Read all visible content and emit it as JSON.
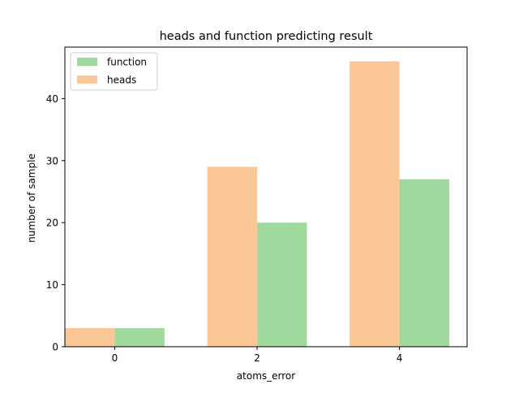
{
  "chart_data": {
    "type": "bar",
    "title": "heads and function predicting result",
    "xlabel": "atoms_error",
    "ylabel": "number of sample",
    "categories": [
      "0",
      "2",
      "4"
    ],
    "x": [
      0,
      2,
      4
    ],
    "xlim": [
      -0.7,
      4.95
    ],
    "ylim": [
      0,
      48.3
    ],
    "yticks": [
      0,
      10,
      20,
      30,
      40
    ],
    "series": [
      {
        "name": "function",
        "values": [
          3,
          20,
          27
        ],
        "color": "#a0d99d"
      },
      {
        "name": "heads",
        "values": [
          3,
          29,
          46
        ],
        "color": "#fbc797"
      }
    ],
    "legend_position": "upper left",
    "grid": false
  }
}
